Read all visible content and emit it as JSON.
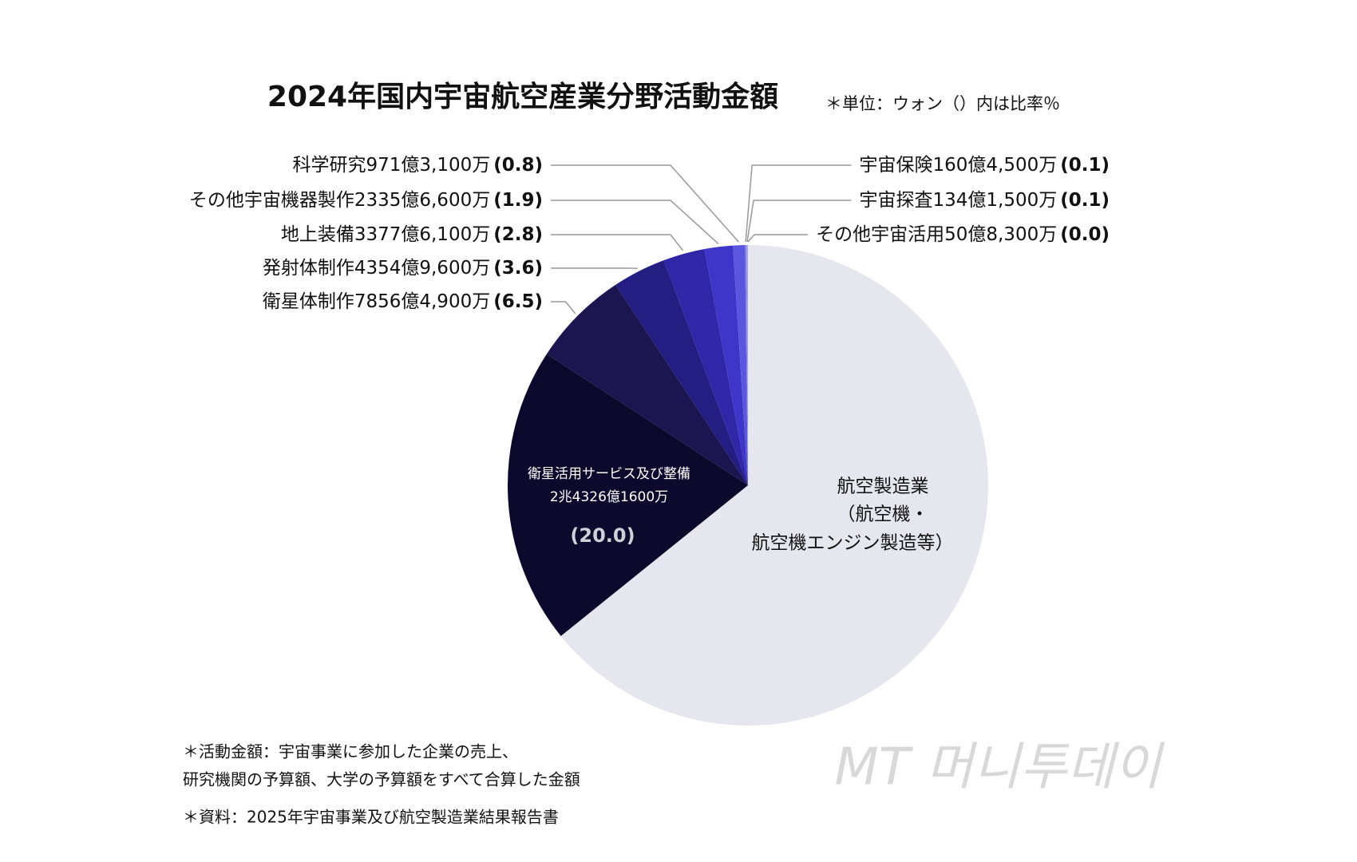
{
  "chart_data": {
    "type": "pie",
    "title": "2024年国内宇宙航空産業分野活動金額",
    "subtitle": "＊単位：ウォン（）内は比率％",
    "label_lines": [
      [
        "航空製造業",
        "（航空機・",
        "航空機エンジン製造等）"
      ],
      [
        "衛星活用サービス及び整備",
        "2兆4326億1600万"
      ],
      [
        "衛星体制作7856億4,900万"
      ],
      [
        "発射体制作4354億9,600万"
      ],
      [
        "地上装備3377億6,100万"
      ],
      [
        "その他宇宙機器製作2335億6,600万"
      ],
      [
        "科学研究971億3,100万"
      ],
      [
        "宇宙保険160億4,500万"
      ],
      [
        "宇宙探査134億1,500万"
      ],
      [
        "その他宇宙活用50億8,300万"
      ]
    ],
    "values": [
      64.2,
      20.0,
      6.5,
      3.6,
      2.8,
      1.9,
      0.8,
      0.1,
      0.1,
      0.0
    ],
    "value_labels": [
      null,
      "(20.0)",
      "(6.5)",
      "(3.6)",
      "(2.8)",
      "(1.9)",
      "(0.8)",
      "(0.1)",
      "(0.1)",
      "(0.0)"
    ],
    "colors": [
      "#e6e6ee",
      "#0b0a2c",
      "#1b1650",
      "#241d82",
      "#2f26a8",
      "#3e36c8",
      "#5b56e0",
      "#7c7ce8",
      "#a2a2f0",
      "#cacaf4"
    ],
    "notes": [
      "＊活動金額：宇宙事業に参加した企業の売上、",
      "研究機関の予算額、大学の予算額をすべて合算した金額",
      "＊資料：2025年宇宙事業及び航空製造業結果報告書"
    ],
    "watermark": "MT 머니투데이"
  }
}
